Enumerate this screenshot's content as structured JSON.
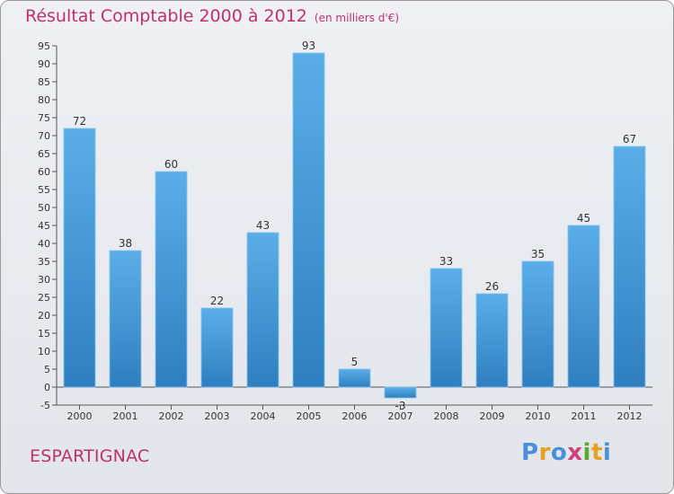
{
  "header": {
    "title": "Résultat Comptable 2000 à 2012",
    "subtitle": "(en milliers d'€)"
  },
  "footer": {
    "commune": "ESPARTIGNAC",
    "logo_letters": [
      "P",
      "r",
      "o",
      "x",
      "i",
      "t",
      "i"
    ],
    "logo_colors": [
      "#4a90d9",
      "#e8a020",
      "#4a90d9",
      "#d04080",
      "#5aa830",
      "#e8a020",
      "#4a90d9"
    ]
  },
  "chart_data": {
    "type": "bar",
    "title": "Résultat Comptable 2000 à 2012",
    "subtitle": "(en milliers d'€)",
    "categories": [
      "2000",
      "2001",
      "2002",
      "2003",
      "2004",
      "2005",
      "2006",
      "2007",
      "2008",
      "2009",
      "2010",
      "2011",
      "2012"
    ],
    "values": [
      72,
      38,
      60,
      22,
      43,
      93,
      5,
      -3,
      33,
      26,
      35,
      45,
      67
    ],
    "data_labels": [
      "72",
      "38",
      "60",
      "22",
      "43",
      "93",
      "5",
      "-3",
      "33",
      "26",
      "35",
      "45",
      "67"
    ],
    "ylim": [
      -5,
      95
    ],
    "yticks": [
      -5,
      0,
      5,
      10,
      15,
      20,
      25,
      30,
      35,
      40,
      45,
      50,
      55,
      60,
      65,
      70,
      75,
      80,
      85,
      90,
      95
    ],
    "grid": false,
    "bar_color_light": "#5aaee8",
    "bar_color_dark": "#2f7fc0",
    "title_color": "#c0306e"
  }
}
